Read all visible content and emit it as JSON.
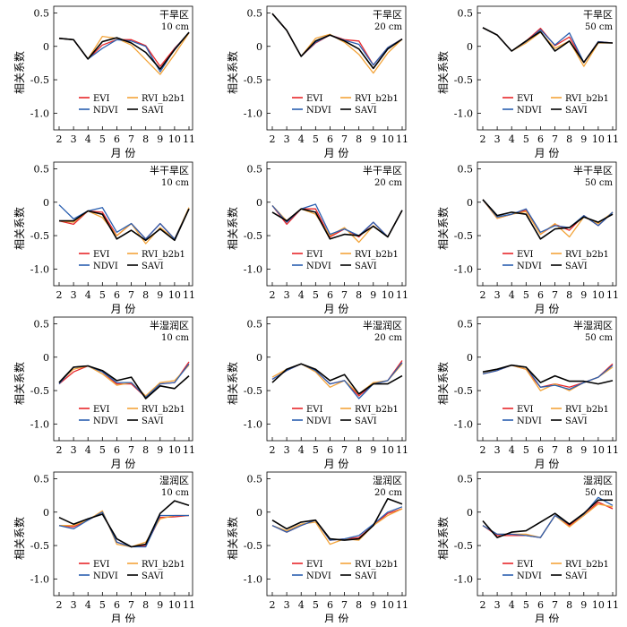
{
  "axis": {
    "xlabel": "月 份",
    "ylabel": "相关系数",
    "x_ticks": [
      "2",
      "3",
      "4",
      "5",
      "6",
      "7",
      "8",
      "9",
      "10",
      "11"
    ],
    "y_ticks": [
      "0.5",
      "0",
      "-0.5",
      "-1.0"
    ],
    "ylim": [
      -1.25,
      0.6
    ]
  },
  "legend": {
    "entries": [
      {
        "name": "EVI",
        "color": "#e8272a"
      },
      {
        "name": "RVI_b2b1",
        "color": "#f3a43a"
      },
      {
        "name": "NDVI",
        "color": "#2a5fb0"
      },
      {
        "name": "SAVI",
        "color": "#000000"
      }
    ]
  },
  "chart_data": [
    {
      "type": "line",
      "zone": "干旱区",
      "depth": "10 cm",
      "x": [
        2,
        3,
        4,
        5,
        6,
        7,
        8,
        9,
        10,
        11
      ],
      "series": [
        {
          "name": "EVI",
          "values": [
            0.12,
            0.1,
            -0.19,
            0.02,
            0.1,
            0.1,
            0.01,
            -0.3,
            -0.03,
            0.2
          ]
        },
        {
          "name": "RVI_b2b1",
          "values": [
            0.12,
            0.1,
            -0.19,
            0.15,
            0.12,
            0.02,
            -0.2,
            -0.42,
            -0.12,
            0.2
          ]
        },
        {
          "name": "NDVI",
          "values": [
            0.12,
            0.1,
            -0.19,
            -0.03,
            0.1,
            0.08,
            0.0,
            -0.38,
            -0.04,
            0.21
          ]
        },
        {
          "name": "SAVI",
          "values": [
            0.12,
            0.1,
            -0.19,
            0.07,
            0.13,
            0.05,
            -0.09,
            -0.34,
            -0.05,
            0.21
          ]
        }
      ]
    },
    {
      "type": "line",
      "zone": "干旱区",
      "depth": "20 cm",
      "x": [
        2,
        3,
        4,
        5,
        6,
        7,
        8,
        9,
        10,
        11
      ],
      "series": [
        {
          "name": "EVI",
          "values": [
            0.49,
            0.24,
            -0.15,
            0.05,
            0.17,
            0.1,
            0.08,
            -0.28,
            -0.02,
            0.11
          ]
        },
        {
          "name": "RVI_b2b1",
          "values": [
            0.49,
            0.24,
            -0.15,
            0.12,
            0.18,
            0.06,
            -0.12,
            -0.4,
            -0.1,
            0.11
          ]
        },
        {
          "name": "NDVI",
          "values": [
            0.49,
            0.24,
            -0.15,
            0.06,
            0.17,
            0.09,
            0.03,
            -0.28,
            -0.02,
            0.11
          ]
        },
        {
          "name": "SAVI",
          "values": [
            0.49,
            0.24,
            -0.15,
            0.08,
            0.17,
            0.08,
            -0.04,
            -0.33,
            -0.04,
            0.11
          ]
        }
      ]
    },
    {
      "type": "line",
      "zone": "干旱区",
      "depth": "50 cm",
      "x": [
        2,
        3,
        4,
        5,
        6,
        7,
        8,
        9,
        10,
        11
      ],
      "series": [
        {
          "name": "EVI",
          "values": [
            0.28,
            0.17,
            -0.07,
            0.08,
            0.27,
            0.01,
            0.14,
            -0.24,
            0.07,
            0.05
          ]
        },
        {
          "name": "RVI_b2b1",
          "values": [
            0.28,
            0.17,
            -0.07,
            0.05,
            0.21,
            -0.03,
            0.08,
            -0.3,
            0.05,
            0.05
          ]
        },
        {
          "name": "NDVI",
          "values": [
            0.28,
            0.17,
            -0.07,
            0.07,
            0.25,
            0.02,
            0.2,
            -0.24,
            0.07,
            0.05
          ]
        },
        {
          "name": "SAVI",
          "values": [
            0.28,
            0.17,
            -0.07,
            0.08,
            0.22,
            -0.07,
            0.08,
            -0.24,
            0.06,
            0.05
          ]
        }
      ]
    },
    {
      "type": "line",
      "zone": "半干旱区",
      "depth": "10 cm",
      "x": [
        2,
        3,
        4,
        5,
        6,
        7,
        8,
        9,
        10,
        11
      ],
      "series": [
        {
          "name": "EVI",
          "values": [
            -0.28,
            -0.33,
            -0.13,
            -0.15,
            -0.5,
            -0.32,
            -0.55,
            -0.32,
            -0.55,
            -0.1
          ]
        },
        {
          "name": "RVI_b2b1",
          "values": [
            -0.28,
            -0.3,
            -0.13,
            -0.23,
            -0.5,
            -0.32,
            -0.62,
            -0.38,
            -0.55,
            -0.08
          ]
        },
        {
          "name": "NDVI",
          "values": [
            -0.04,
            -0.25,
            -0.13,
            -0.08,
            -0.45,
            -0.32,
            -0.55,
            -0.32,
            -0.55,
            -0.1
          ]
        },
        {
          "name": "SAVI",
          "values": [
            -0.28,
            -0.28,
            -0.13,
            -0.18,
            -0.55,
            -0.42,
            -0.57,
            -0.4,
            -0.57,
            -0.1
          ]
        }
      ]
    },
    {
      "type": "line",
      "zone": "半干旱区",
      "depth": "20 cm",
      "x": [
        2,
        3,
        4,
        5,
        6,
        7,
        8,
        9,
        10,
        11
      ],
      "series": [
        {
          "name": "EVI",
          "values": [
            -0.05,
            -0.33,
            -0.1,
            -0.1,
            -0.52,
            -0.4,
            -0.52,
            -0.3,
            -0.52,
            -0.12
          ]
        },
        {
          "name": "RVI_b2b1",
          "values": [
            -0.05,
            -0.28,
            -0.1,
            -0.18,
            -0.5,
            -0.38,
            -0.6,
            -0.35,
            -0.52,
            -0.12
          ]
        },
        {
          "name": "NDVI",
          "values": [
            -0.05,
            -0.3,
            -0.1,
            -0.03,
            -0.48,
            -0.4,
            -0.5,
            -0.3,
            -0.52,
            -0.12
          ]
        },
        {
          "name": "SAVI",
          "values": [
            -0.15,
            -0.28,
            -0.1,
            -0.15,
            -0.55,
            -0.48,
            -0.5,
            -0.36,
            -0.52,
            -0.12
          ]
        }
      ]
    },
    {
      "type": "line",
      "zone": "半干旱区",
      "depth": "50 cm",
      "x": [
        2,
        3,
        4,
        5,
        6,
        7,
        8,
        9,
        10,
        11
      ],
      "series": [
        {
          "name": "EVI",
          "values": [
            0.04,
            -0.24,
            -0.18,
            -0.12,
            -0.48,
            -0.33,
            -0.42,
            -0.2,
            -0.35,
            -0.15
          ]
        },
        {
          "name": "RVI_b2b1",
          "values": [
            0.04,
            -0.24,
            -0.18,
            -0.14,
            -0.48,
            -0.32,
            -0.52,
            -0.22,
            -0.32,
            -0.15
          ]
        },
        {
          "name": "NDVI",
          "values": [
            0.04,
            -0.22,
            -0.18,
            -0.1,
            -0.45,
            -0.35,
            -0.38,
            -0.2,
            -0.35,
            -0.15
          ]
        },
        {
          "name": "SAVI",
          "values": [
            0.04,
            -0.2,
            -0.15,
            -0.18,
            -0.55,
            -0.4,
            -0.38,
            -0.22,
            -0.3,
            -0.18
          ]
        }
      ]
    },
    {
      "type": "line",
      "zone": "半湿润区",
      "depth": "10 cm",
      "x": [
        2,
        3,
        4,
        5,
        6,
        7,
        8,
        9,
        10,
        11
      ],
      "series": [
        {
          "name": "EVI",
          "values": [
            -0.4,
            -0.22,
            -0.13,
            -0.22,
            -0.4,
            -0.4,
            -0.6,
            -0.4,
            -0.38,
            -0.07
          ]
        },
        {
          "name": "RVI_b2b1",
          "values": [
            -0.38,
            -0.18,
            -0.13,
            -0.25,
            -0.42,
            -0.38,
            -0.58,
            -0.38,
            -0.35,
            -0.12
          ]
        },
        {
          "name": "NDVI",
          "values": [
            -0.4,
            -0.15,
            -0.13,
            -0.22,
            -0.38,
            -0.38,
            -0.6,
            -0.4,
            -0.38,
            -0.1
          ]
        },
        {
          "name": "SAVI",
          "values": [
            -0.38,
            -0.15,
            -0.13,
            -0.2,
            -0.35,
            -0.3,
            -0.62,
            -0.43,
            -0.47,
            -0.28
          ]
        }
      ]
    },
    {
      "type": "line",
      "zone": "半湿润区",
      "depth": "20 cm",
      "x": [
        2,
        3,
        4,
        5,
        6,
        7,
        8,
        9,
        10,
        11
      ],
      "series": [
        {
          "name": "EVI",
          "values": [
            -0.33,
            -0.2,
            -0.1,
            -0.2,
            -0.4,
            -0.35,
            -0.58,
            -0.4,
            -0.35,
            -0.05
          ]
        },
        {
          "name": "RVI_b2b1",
          "values": [
            -0.3,
            -0.18,
            -0.1,
            -0.22,
            -0.45,
            -0.35,
            -0.55,
            -0.38,
            -0.35,
            -0.1
          ]
        },
        {
          "name": "NDVI",
          "values": [
            -0.33,
            -0.2,
            -0.1,
            -0.2,
            -0.4,
            -0.35,
            -0.62,
            -0.4,
            -0.35,
            -0.08
          ]
        },
        {
          "name": "SAVI",
          "values": [
            -0.38,
            -0.18,
            -0.1,
            -0.18,
            -0.35,
            -0.26,
            -0.55,
            -0.4,
            -0.4,
            -0.28
          ]
        }
      ]
    },
    {
      "type": "line",
      "zone": "半湿润区",
      "depth": "50 cm",
      "x": [
        2,
        3,
        4,
        5,
        6,
        7,
        8,
        9,
        10,
        11
      ],
      "series": [
        {
          "name": "EVI",
          "values": [
            -0.25,
            -0.2,
            -0.12,
            -0.18,
            -0.45,
            -0.4,
            -0.45,
            -0.38,
            -0.3,
            -0.1
          ]
        },
        {
          "name": "RVI_b2b1",
          "values": [
            -0.25,
            -0.18,
            -0.12,
            -0.18,
            -0.5,
            -0.4,
            -0.5,
            -0.38,
            -0.3,
            -0.15
          ]
        },
        {
          "name": "NDVI",
          "values": [
            -0.25,
            -0.2,
            -0.12,
            -0.15,
            -0.45,
            -0.42,
            -0.48,
            -0.38,
            -0.3,
            -0.12
          ]
        },
        {
          "name": "SAVI",
          "values": [
            -0.22,
            -0.18,
            -0.12,
            -0.15,
            -0.38,
            -0.28,
            -0.36,
            -0.36,
            -0.4,
            -0.35
          ]
        }
      ]
    },
    {
      "type": "line",
      "zone": "湿润区",
      "depth": "10 cm",
      "x": [
        2,
        3,
        4,
        5,
        6,
        7,
        8,
        9,
        10,
        11
      ],
      "series": [
        {
          "name": "EVI",
          "values": [
            -0.2,
            -0.22,
            -0.12,
            0.0,
            -0.45,
            -0.52,
            -0.5,
            -0.08,
            -0.07,
            -0.05
          ]
        },
        {
          "name": "RVI_b2b1",
          "values": [
            -0.2,
            -0.2,
            -0.12,
            0.02,
            -0.48,
            -0.52,
            -0.45,
            -0.1,
            -0.05,
            -0.05
          ]
        },
        {
          "name": "NDVI",
          "values": [
            -0.2,
            -0.25,
            -0.12,
            0.0,
            -0.45,
            -0.52,
            -0.52,
            -0.05,
            -0.05,
            -0.05
          ]
        },
        {
          "name": "SAVI",
          "values": [
            -0.08,
            -0.18,
            -0.1,
            -0.03,
            -0.4,
            -0.52,
            -0.48,
            -0.02,
            0.17,
            0.1
          ]
        }
      ]
    },
    {
      "type": "line",
      "zone": "湿润区",
      "depth": "20 cm",
      "x": [
        2,
        3,
        4,
        5,
        6,
        7,
        8,
        9,
        10,
        11
      ],
      "series": [
        {
          "name": "EVI",
          "values": [
            -0.2,
            -0.3,
            -0.2,
            -0.12,
            -0.42,
            -0.4,
            -0.38,
            -0.2,
            -0.02,
            0.05
          ]
        },
        {
          "name": "RVI_b2b1",
          "values": [
            -0.2,
            -0.28,
            -0.18,
            -0.15,
            -0.48,
            -0.4,
            -0.42,
            -0.2,
            -0.05,
            0.05
          ]
        },
        {
          "name": "NDVI",
          "values": [
            -0.2,
            -0.3,
            -0.2,
            -0.12,
            -0.42,
            -0.4,
            -0.35,
            -0.18,
            0.0,
            0.08
          ]
        },
        {
          "name": "SAVI",
          "values": [
            -0.12,
            -0.25,
            -0.15,
            -0.12,
            -0.4,
            -0.42,
            -0.4,
            -0.2,
            0.2,
            0.12
          ]
        }
      ]
    },
    {
      "type": "line",
      "zone": "湿润区",
      "depth": "50 cm",
      "x": [
        2,
        3,
        4,
        5,
        6,
        7,
        8,
        9,
        10,
        11
      ],
      "series": [
        {
          "name": "EVI",
          "values": [
            -0.2,
            -0.35,
            -0.35,
            -0.35,
            -0.38,
            -0.05,
            -0.2,
            -0.05,
            0.15,
            0.05
          ]
        },
        {
          "name": "RVI_b2b1",
          "values": [
            -0.2,
            -0.33,
            -0.33,
            -0.33,
            -0.38,
            -0.05,
            -0.22,
            -0.05,
            0.12,
            0.08
          ]
        },
        {
          "name": "NDVI",
          "values": [
            -0.2,
            -0.33,
            -0.33,
            -0.35,
            -0.38,
            -0.05,
            -0.18,
            -0.03,
            0.22,
            0.1
          ]
        },
        {
          "name": "SAVI",
          "values": [
            -0.13,
            -0.38,
            -0.3,
            -0.28,
            -0.15,
            -0.02,
            -0.18,
            -0.02,
            0.18,
            0.18
          ]
        }
      ]
    }
  ]
}
